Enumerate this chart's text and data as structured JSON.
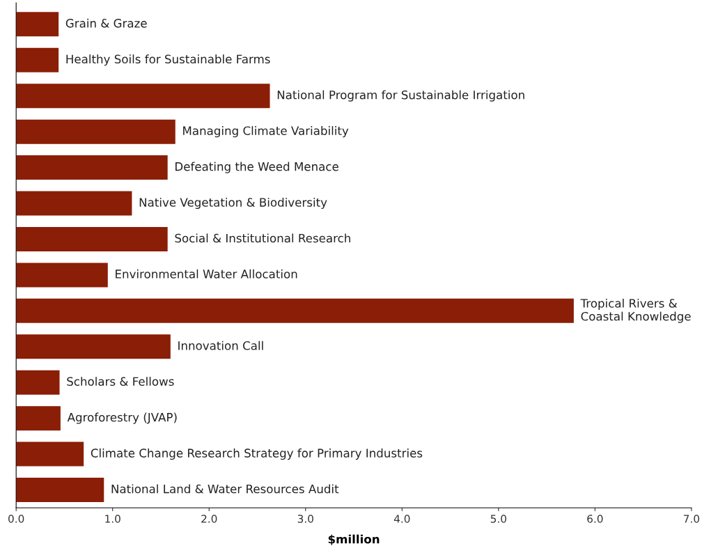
{
  "chart_data": {
    "type": "bar",
    "orientation": "horizontal",
    "xlabel": "$million",
    "categories": [
      "Grain & Graze",
      "Healthy Soils for Sustainable Farms",
      "National Program for Sustainable Irrigation",
      "Managing Climate Variability",
      "Defeating the Weed Menace",
      "Native Vegetation & Biodiversity",
      "Social & Institutional Research",
      "Environmental Water Allocation",
      "Tropical Rivers &\nCoastal Knowledge",
      "Innovation Call",
      "Scholars & Fellows",
      "Agroforestry (JVAP)",
      "Climate Change Research Strategy for Primary Industries",
      "National Land & Water Resources Audit"
    ],
    "values": [
      0.44,
      0.44,
      2.63,
      1.65,
      1.57,
      1.2,
      1.57,
      0.95,
      5.78,
      1.6,
      0.45,
      0.46,
      0.7,
      0.91
    ],
    "color": "#8b1e06",
    "xlim": [
      0,
      7
    ],
    "xticks": [
      {
        "value": 0,
        "label": "0.0"
      },
      {
        "value": 1,
        "label": "1.0"
      },
      {
        "value": 2,
        "label": "2.0"
      },
      {
        "value": 3,
        "label": "3.0"
      },
      {
        "value": 4,
        "label": "4.0"
      },
      {
        "value": 5,
        "label": "5.0"
      },
      {
        "value": 6,
        "label": "6.0"
      },
      {
        "value": 7,
        "label": "7.0"
      }
    ],
    "tick_labels": "x",
    "grid": false,
    "legend": false
  }
}
